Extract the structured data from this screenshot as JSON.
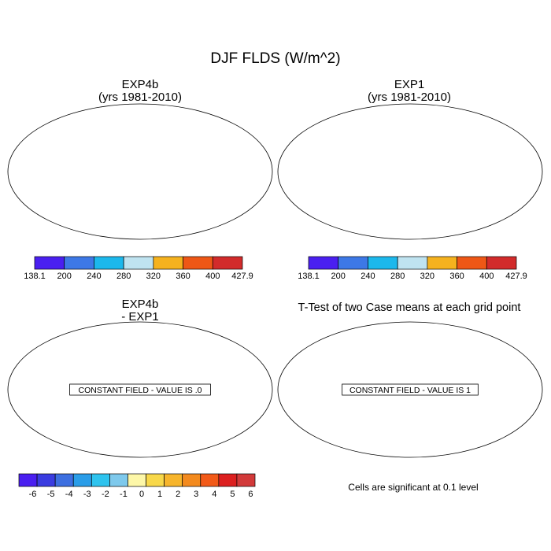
{
  "title": "DJF FLDS (W/m^2)",
  "panels": [
    {
      "id": "exp4b",
      "title_line1": "EXP4b",
      "title_line2": "(yrs 1981-2010)",
      "field": "mean"
    },
    {
      "id": "exp1",
      "title_line1": "EXP1",
      "title_line2": "(yrs 1981-2010)",
      "field": "mean"
    },
    {
      "id": "diff",
      "title_line1": "EXP4b",
      "title_line2": "- EXP1",
      "field": "constant",
      "constant_label": "CONSTANT FIELD - VALUE IS .0"
    },
    {
      "id": "ttest",
      "title_line1": "T-Test of two Case means at each grid point",
      "title_line2": "",
      "field": "constant",
      "constant_label": "CONSTANT FIELD - VALUE IS 1"
    }
  ],
  "footnote": "Cells are significant at 0.1 level",
  "chart_data": [
    {
      "type": "heatmap",
      "title": "EXP4b (yrs 1981-2010)",
      "colorbar": {
        "labels": [
          "138.1",
          "200",
          "240",
          "280",
          "320",
          "360",
          "400",
          "427.9"
        ],
        "colors": [
          "#4a1ff0",
          "#3d78e6",
          "#1cb8ec",
          "#bfe3f0",
          "#f5b21e",
          "#ee5716",
          "#d22b2b"
        ]
      }
    },
    {
      "type": "heatmap",
      "title": "EXP1 (yrs 1981-2010)",
      "colorbar": {
        "labels": [
          "138.1",
          "200",
          "240",
          "280",
          "320",
          "360",
          "400",
          "427.9"
        ],
        "colors": [
          "#4a1ff0",
          "#3d78e6",
          "#1cb8ec",
          "#bfe3f0",
          "#f5b21e",
          "#ee5716",
          "#d22b2b"
        ]
      }
    },
    {
      "type": "heatmap",
      "title": "EXP4b - EXP1",
      "constant_value": 0,
      "colorbar": {
        "labels": [
          "-6",
          "-5",
          "-4",
          "-3",
          "-2",
          "-1",
          "0",
          "1",
          "2",
          "3",
          "4",
          "5",
          "6"
        ],
        "colors": [
          "#4a1ff0",
          "#3a3ce0",
          "#3d6fe0",
          "#2a9de8",
          "#2ec3ee",
          "#7ec9ec",
          "#fdf7a8",
          "#f8d84a",
          "#f7b52c",
          "#f38a1e",
          "#f25a18",
          "#dc2020",
          "#d23a3a"
        ]
      }
    },
    {
      "type": "heatmap",
      "title": "T-Test of two Case means at each grid point",
      "constant_value": 1
    }
  ]
}
